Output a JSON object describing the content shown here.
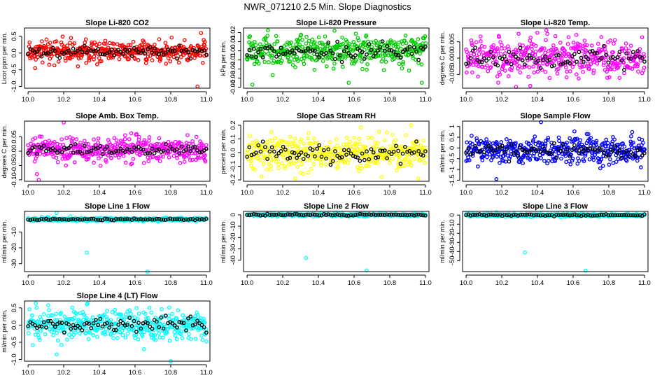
{
  "figure": {
    "title": "NWR_071210  2.5 Min. Slope Diagnostics"
  },
  "chart_data": [
    {
      "id": "li820-co2",
      "type": "scatter",
      "title": "Slope Li-820 CO2",
      "ylabel": "Licor ppm per min.",
      "color": "#ff0000",
      "xlim": [
        9.98,
        11.02
      ],
      "ylim": [
        -1.05,
        0.75
      ],
      "xticks": [
        10.0,
        10.2,
        10.4,
        10.6,
        10.8,
        11.0
      ],
      "yticks": [
        -1.0,
        -0.5,
        0.0,
        0.5
      ],
      "ytick_labels": [
        "-1.0",
        "-0.5",
        "0.0",
        "0.5"
      ],
      "x": [
        10.0,
        11.0
      ],
      "y_center": 0.05,
      "y_spread": 0.15,
      "outliers": [
        {
          "x": 10.97,
          "y": 0.6
        },
        {
          "x": 10.95,
          "y": -1.0
        },
        {
          "x": 10.04,
          "y": -0.45
        },
        {
          "x": 10.28,
          "y": -0.4
        }
      ]
    },
    {
      "id": "li820-pressure",
      "type": "scatter",
      "title": "Slope Li-820 Pressure",
      "ylabel": "kPa per min.",
      "color": "#00cc00",
      "xlim": [
        9.98,
        11.02
      ],
      "ylim": [
        -0.041,
        0.025
      ],
      "xticks": [
        10.0,
        10.2,
        10.4,
        10.6,
        10.8,
        11.0
      ],
      "yticks": [
        -0.04,
        -0.03,
        -0.02,
        -0.01,
        0.0,
        0.01,
        0.02
      ],
      "ytick_labels": [
        "-0.04",
        "-0.03",
        "-0.02",
        "-0.01",
        "0.00",
        "0.01",
        "0.02"
      ],
      "x": [
        10.0,
        11.0
      ],
      "y_center": 0.0,
      "y_spread": 0.008,
      "outliers": [
        {
          "x": 10.03,
          "y": -0.037
        },
        {
          "x": 10.57,
          "y": -0.035
        },
        {
          "x": 10.98,
          "y": -0.035
        },
        {
          "x": 10.49,
          "y": 0.022
        }
      ]
    },
    {
      "id": "li820-temp",
      "type": "scatter",
      "title": "Slope Li-820 Temp.",
      "ylabel": "degrees C per min.",
      "color": "#ff00ff",
      "xlim": [
        9.98,
        11.02
      ],
      "ylim": [
        -0.0092,
        0.0092
      ],
      "xticks": [
        10.0,
        10.2,
        10.4,
        10.6,
        10.8,
        11.0
      ],
      "yticks": [
        -0.005,
        0.0,
        0.005
      ],
      "ytick_labels": [
        "-0.005",
        "0.000",
        "0.005"
      ],
      "x": [
        10.0,
        11.0
      ],
      "y_center": 0.0,
      "y_spread": 0.0028,
      "outliers": [
        {
          "x": 10.28,
          "y": -0.0088
        },
        {
          "x": 10.36,
          "y": -0.0085
        },
        {
          "x": 10.45,
          "y": 0.0085
        },
        {
          "x": 10.18,
          "y": -0.0075
        }
      ]
    },
    {
      "id": "amb-box-temp",
      "type": "scatter",
      "title": "Slope Amb. Box Temp.",
      "ylabel": "degrees C per min.",
      "color": "#ff00ff",
      "xlim": [
        9.98,
        11.02
      ],
      "ylim": [
        -0.105,
        0.105
      ],
      "xticks": [
        10.0,
        10.2,
        10.4,
        10.6,
        10.8,
        11.0
      ],
      "yticks": [
        -0.1,
        -0.05,
        0.0,
        0.05
      ],
      "ytick_labels": [
        "-0.10",
        "-0.05",
        "0.00",
        "0.05"
      ],
      "x": [
        10.0,
        11.0
      ],
      "y_center": 0.005,
      "y_spread": 0.02,
      "outliers": [
        {
          "x": 10.2,
          "y": 0.1
        },
        {
          "x": 10.06,
          "y": -0.1
        },
        {
          "x": 10.05,
          "y": -0.08
        }
      ]
    },
    {
      "id": "gas-stream-rh",
      "type": "scatter",
      "title": "Slope Gas Stream RH",
      "ylabel": "percent per min.",
      "color": "#ffff00",
      "xlim": [
        9.98,
        11.02
      ],
      "ylim": [
        -0.21,
        0.23
      ],
      "xticks": [
        10.0,
        10.2,
        10.4,
        10.6,
        10.8,
        11.0
      ],
      "yticks": [
        -0.2,
        -0.1,
        0.0,
        0.1,
        0.2
      ],
      "ytick_labels": [
        "-0.2",
        "-0.1",
        "0.0",
        "0.1",
        "0.2"
      ],
      "x": [
        10.0,
        11.0
      ],
      "y_center": 0.0,
      "y_spread": 0.06,
      "outliers": [
        {
          "x": 10.92,
          "y": 0.2
        },
        {
          "x": 10.27,
          "y": -0.19
        },
        {
          "x": 10.96,
          "y": -0.19
        }
      ]
    },
    {
      "id": "sample-flow",
      "type": "scatter",
      "title": "Slope Sample Flow",
      "ylabel": "ml/min per min.",
      "color": "#0000ff",
      "xlim": [
        9.98,
        11.02
      ],
      "ylim": [
        -1.55,
        1.25
      ],
      "xticks": [
        10.0,
        10.2,
        10.4,
        10.6,
        10.8,
        11.0
      ],
      "yticks": [
        -1.5,
        -1.0,
        -0.5,
        0.0,
        0.5,
        1.0
      ],
      "ytick_labels": [
        "-1.5",
        "-1",
        "-0.5",
        "0",
        "0.5",
        "1"
      ],
      "x": [
        10.0,
        11.0
      ],
      "y_center": -0.1,
      "y_spread": 0.3,
      "outliers": [
        {
          "x": 10.17,
          "y": -1.45
        },
        {
          "x": 10.42,
          "y": 1.2
        },
        {
          "x": 10.98,
          "y": -0.9
        }
      ]
    },
    {
      "id": "line1-flow",
      "type": "scatter",
      "title": "Slope Line 1 Flow",
      "ylabel": "ml/min per min.",
      "color": "#00ffff",
      "xlim": [
        9.98,
        11.02
      ],
      "ylim": [
        -35,
        3
      ],
      "xticks": [
        10.0,
        10.2,
        10.4,
        10.6,
        10.8,
        11.0
      ],
      "yticks": [
        -30,
        -20,
        -10
      ],
      "ytick_labels": [
        "-30",
        "-20",
        "-10"
      ],
      "x": [
        10.0,
        11.0
      ],
      "y_center": -2.0,
      "y_spread": 0.5,
      "outliers": [
        {
          "x": 10.33,
          "y": -23
        },
        {
          "x": 10.67,
          "y": -35
        },
        {
          "x": 10.16,
          "y": 2
        }
      ]
    },
    {
      "id": "line2-flow",
      "type": "scatter",
      "title": "Slope Line 2 Flow",
      "ylabel": "ml/min per min.",
      "color": "#00ffff",
      "xlim": [
        9.98,
        11.02
      ],
      "ylim": [
        -50,
        3
      ],
      "xticks": [
        10.0,
        10.2,
        10.4,
        10.6,
        10.8,
        11.0
      ],
      "yticks": [
        -40,
        -30,
        -20,
        -10,
        0
      ],
      "ytick_labels": [
        "-40",
        "-30",
        "-20",
        "-10",
        "0"
      ],
      "x": [
        10.0,
        11.0
      ],
      "y_center": 0.0,
      "y_spread": 0.6,
      "outliers": [
        {
          "x": 10.33,
          "y": -38
        },
        {
          "x": 10.67,
          "y": -49
        },
        {
          "x": 10.5,
          "y": 2
        }
      ]
    },
    {
      "id": "line3-flow",
      "type": "scatter",
      "title": "Slope Line 3 Flow",
      "ylabel": "ml/min per min.",
      "color": "#00ffff",
      "xlim": [
        9.98,
        11.02
      ],
      "ylim": [
        -62,
        4
      ],
      "xticks": [
        10.0,
        10.2,
        10.4,
        10.6,
        10.8,
        11.0
      ],
      "yticks": [
        -50,
        -40,
        -30,
        -20,
        -10,
        0
      ],
      "ytick_labels": [
        "-50",
        "-40",
        "-30",
        "-20",
        "-10",
        "0"
      ],
      "x": [
        10.0,
        11.0
      ],
      "y_center": 0.0,
      "y_spread": 0.8,
      "outliers": [
        {
          "x": 10.33,
          "y": -41
        },
        {
          "x": 10.67,
          "y": -61
        },
        {
          "x": 10.17,
          "y": 3
        }
      ]
    },
    {
      "id": "line4-lt-flow",
      "type": "scatter",
      "title": "Slope Line 4 (LT) Flow",
      "ylabel": "ml/min per min.",
      "color": "#00ffff",
      "xlim": [
        9.98,
        11.02
      ],
      "ylim": [
        -1.05,
        0.7
      ],
      "xticks": [
        10.0,
        10.2,
        10.4,
        10.6,
        10.8,
        11.0
      ],
      "yticks": [
        -1.0,
        -0.5,
        0.0,
        0.5
      ],
      "ytick_labels": [
        "-1.0",
        "-0.5",
        "0.0",
        "0.5"
      ],
      "x": [
        10.0,
        11.0
      ],
      "y_center": 0.0,
      "y_spread": 0.2,
      "outliers": [
        {
          "x": 10.8,
          "y": -1.05
        },
        {
          "x": 10.16,
          "y": -0.85
        },
        {
          "x": 10.65,
          "y": -0.7
        },
        {
          "x": 10.33,
          "y": 0.6
        }
      ]
    }
  ]
}
